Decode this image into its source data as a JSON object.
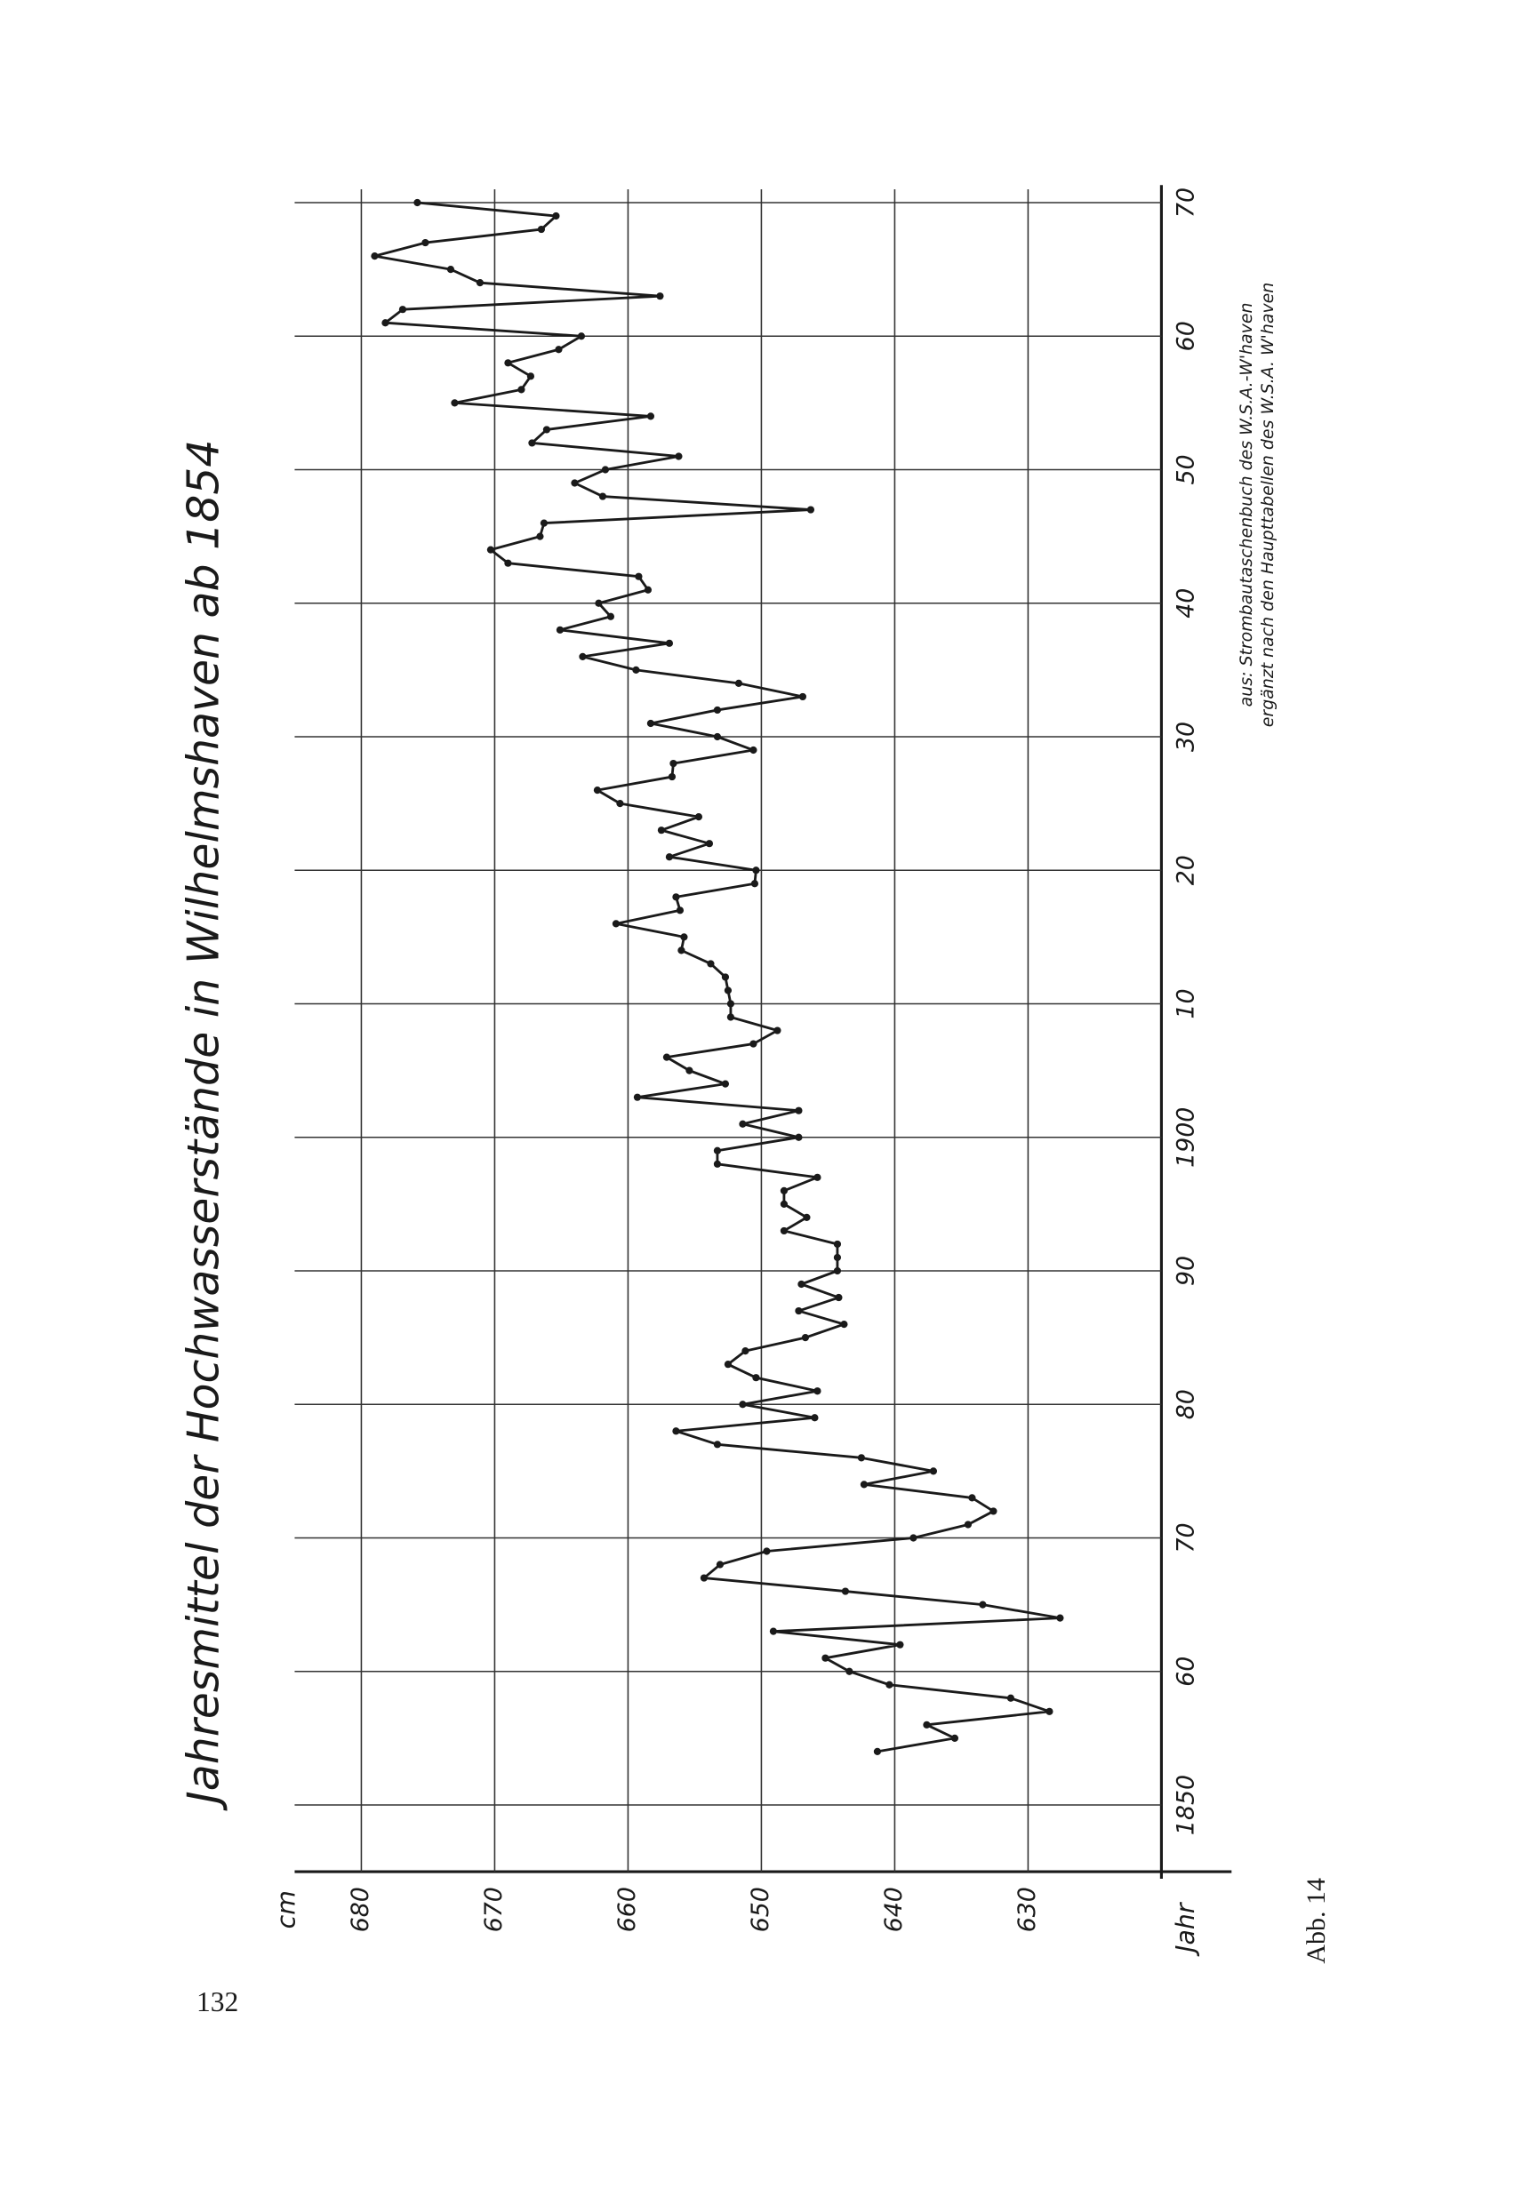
{
  "page_number": "132",
  "caption": "Abb. 14",
  "chart_data": {
    "type": "line",
    "title": "Jahresmittel der Hochwasserstände in Wilhelmshaven ab 1854",
    "x_label": "Jahr",
    "y_label": "cm",
    "annotations": [
      "aus: Strombautaschenbuch des W.S.A.-W'haven",
      "ergänzt nach den Haupttabellen des W.S.A. W'haven"
    ],
    "x": [
      1854,
      1855,
      1856,
      1857,
      1858,
      1859,
      1860,
      1861,
      1862,
      1863,
      1864,
      1865,
      1866,
      1867,
      1868,
      1869,
      1870,
      1871,
      1872,
      1873,
      1874,
      1875,
      1876,
      1877,
      1878,
      1879,
      1880,
      1881,
      1882,
      1883,
      1884,
      1885,
      1886,
      1887,
      1888,
      1889,
      1890,
      1891,
      1892,
      1893,
      1894,
      1895,
      1896,
      1897,
      1898,
      1899,
      1900,
      1901,
      1902,
      1903,
      1904,
      1905,
      1906,
      1907,
      1908,
      1909,
      1910,
      1911,
      1912,
      1913,
      1914,
      1915,
      1916,
      1917,
      1918,
      1919,
      1920,
      1921,
      1922,
      1923,
      1924,
      1925,
      1926,
      1927,
      1928,
      1929,
      1930,
      1931,
      1932,
      1933,
      1934,
      1935,
      1936,
      1937,
      1938,
      1939,
      1940,
      1941,
      1942,
      1943,
      1944,
      1945,
      1946,
      1947,
      1948,
      1949,
      1950,
      1951,
      1952,
      1953,
      1954,
      1955,
      1956,
      1957,
      1958,
      1959,
      1960,
      1961,
      1962,
      1963,
      1964,
      1965,
      1966,
      1967,
      1968,
      1969,
      1970
    ],
    "values": [
      641.3,
      635.5,
      637.6,
      628.4,
      631.3,
      640.4,
      643.4,
      645.2,
      639.6,
      649.1,
      627.6,
      633.4,
      643.7,
      654.3,
      653.1,
      649.6,
      638.6,
      634.5,
      632.6,
      634.2,
      642.3,
      637.1,
      642.5,
      653.3,
      656.4,
      646.0,
      651.4,
      645.8,
      650.4,
      652.5,
      651.2,
      646.7,
      643.8,
      647.2,
      644.2,
      647.0,
      644.3,
      644.3,
      644.3,
      648.3,
      646.6,
      648.3,
      648.3,
      645.8,
      653.3,
      653.3,
      647.2,
      651.4,
      647.2,
      659.3,
      652.7,
      655.4,
      657.1,
      650.6,
      648.8,
      652.3,
      652.3,
      652.5,
      652.7,
      653.8,
      656.0,
      655.8,
      660.9,
      656.1,
      656.4,
      650.5,
      650.4,
      656.9,
      653.9,
      657.5,
      654.7,
      660.6,
      662.3,
      656.7,
      656.6,
      650.6,
      653.3,
      658.3,
      653.3,
      646.9,
      651.7,
      659.4,
      663.4,
      656.9,
      665.1,
      661.3,
      662.2,
      658.5,
      659.2,
      669.0,
      670.3,
      666.6,
      666.3,
      646.3,
      661.9,
      664.0,
      661.7,
      656.2,
      667.2,
      666.1,
      658.3,
      673.0,
      668.0,
      667.3,
      669.0,
      665.2,
      663.5,
      678.2,
      676.9,
      657.6,
      671.1,
      673.3,
      679.0,
      675.2,
      666.5,
      665.4,
      675.8
    ],
    "color": "#1a1a1a",
    "xlim": [
      1845,
      1971
    ],
    "xticks": [
      1850,
      {
        "value": 1860,
        "label": "60"
      },
      {
        "value": 1870,
        "label": "70"
      },
      {
        "value": 1880,
        "label": "80"
      },
      {
        "value": 1890,
        "label": "90"
      },
      1900,
      {
        "value": 1910,
        "label": "10"
      },
      {
        "value": 1920,
        "label": "20"
      },
      {
        "value": 1930,
        "label": "30"
      },
      {
        "value": 1940,
        "label": "40"
      },
      {
        "value": 1950,
        "label": "50"
      },
      {
        "value": 1960,
        "label": "60"
      },
      {
        "value": 1970,
        "label": "70"
      }
    ],
    "ylim": [
      620,
      685
    ],
    "yticks": [
      630,
      640,
      650,
      660,
      670,
      680
    ],
    "grid": true
  }
}
